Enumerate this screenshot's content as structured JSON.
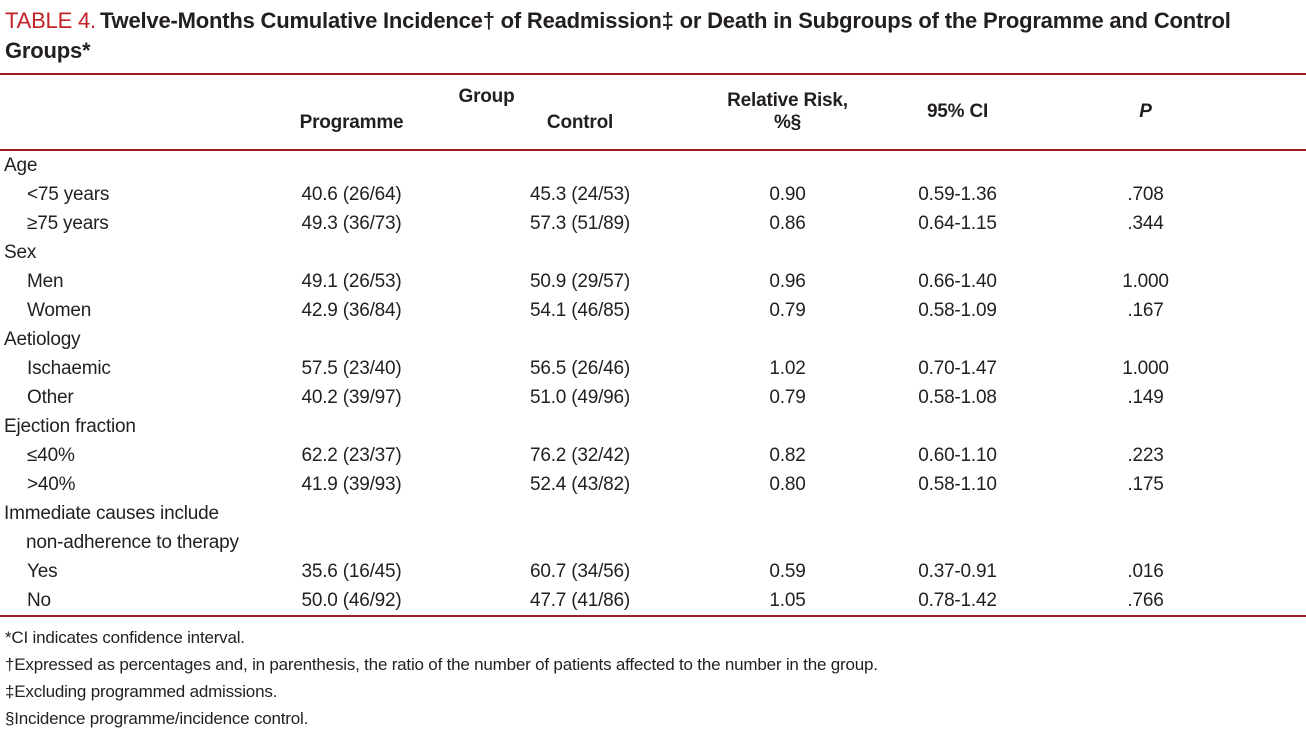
{
  "document": {
    "title_label": "TABLE 4.",
    "title_text": "Twelve-Months Cumulative Incidence† of Readmission‡ or Death in Subgroups of the Programme and Control Groups*"
  },
  "colors": {
    "accent_red": "#c32127",
    "rule_red": "#9e1b1f",
    "text_color": "#231f20"
  },
  "table": {
    "header": {
      "group": "Group",
      "programme": "Programme",
      "control": "Control",
      "relative_risk": "Relative Risk, %§",
      "ci": "95% CI",
      "p": "P"
    },
    "sections": [
      {
        "label": "Age",
        "rows": [
          {
            "label": "<75 years",
            "programme": "40.6 (26/64)",
            "control": "45.3 (24/53)",
            "rr": "0.90",
            "ci": "0.59-1.36",
            "p": ".708"
          },
          {
            "label": "≥75 years",
            "programme": "49.3 (36/73)",
            "control": "57.3 (51/89)",
            "rr": "0.86",
            "ci": "0.64-1.15",
            "p": ".344"
          }
        ]
      },
      {
        "label": "Sex",
        "rows": [
          {
            "label": "Men",
            "programme": "49.1 (26/53)",
            "control": "50.9 (29/57)",
            "rr": "0.96",
            "ci": "0.66-1.40",
            "p": "1.000"
          },
          {
            "label": "Women",
            "programme": "42.9 (36/84)",
            "control": "54.1 (46/85)",
            "rr": "0.79",
            "ci": "0.58-1.09",
            "p": ".167"
          }
        ]
      },
      {
        "label": "Aetiology",
        "rows": [
          {
            "label": "Ischaemic",
            "programme": "57.5 (23/40)",
            "control": "56.5 (26/46)",
            "rr": "1.02",
            "ci": "0.70-1.47",
            "p": "1.000"
          },
          {
            "label": "Other",
            "programme": "40.2 (39/97)",
            "control": "51.0 (49/96)",
            "rr": "0.79",
            "ci": "0.58-1.08",
            "p": ".149"
          }
        ]
      },
      {
        "label": "Ejection fraction",
        "rows": [
          {
            "label": "≤40%",
            "programme": "62.2 (23/37)",
            "control": "76.2 (32/42)",
            "rr": "0.82",
            "ci": "0.60-1.10",
            "p": ".223"
          },
          {
            "label": ">40%",
            "programme": "41.9 (39/93)",
            "control": "52.4 (43/82)",
            "rr": "0.80",
            "ci": "0.58-1.10",
            "p": ".175"
          }
        ]
      },
      {
        "label": "Immediate causes include",
        "label2": "non-adherence to therapy",
        "rows": [
          {
            "label": "Yes",
            "programme": "35.6 (16/45)",
            "control": "60.7 (34/56)",
            "rr": "0.59",
            "ci": "0.37-0.91",
            "p": ".016"
          },
          {
            "label": "No",
            "programme": "50.0 (46/92)",
            "control": "47.7 (41/86)",
            "rr": "1.05",
            "ci": "0.78-1.42",
            "p": ".766"
          }
        ]
      }
    ],
    "footnotes": [
      "*CI indicates confidence interval.",
      "†Expressed as percentages and, in parenthesis, the ratio of the number of patients affected to the number in the group.",
      "‡Excluding programmed admissions.",
      "§Incidence programme/incidence control."
    ]
  }
}
